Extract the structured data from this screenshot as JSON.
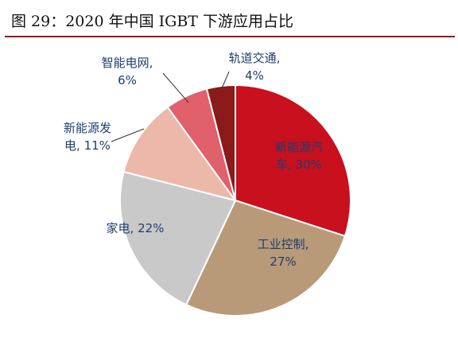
{
  "title": "图 29：2020 年中国 IGBT 下游应用占比",
  "chart_data": {
    "type": "pie",
    "title": "",
    "slices": [
      {
        "label": "新能源汽车",
        "value": 30,
        "color": "#c8101e",
        "text_lines": [
          "新能源汽",
          "车, 30%"
        ]
      },
      {
        "label": "工业控制",
        "value": 27,
        "color": "#b89a78",
        "text_lines": [
          "工业控制,",
          "27%"
        ]
      },
      {
        "label": "家电",
        "value": 22,
        "color": "#c9c9c9",
        "text_lines": [
          "家电, 22%"
        ]
      },
      {
        "label": "新能源发电",
        "value": 11,
        "color": "#ecb8aa",
        "text_lines": [
          "新能源发",
          "电, 11%"
        ]
      },
      {
        "label": "智能电网",
        "value": 6,
        "color": "#e0606c",
        "text_lines": [
          "智能电网,",
          "6%"
        ]
      },
      {
        "label": "轨道交通",
        "value": 4,
        "color": "#8b1a1a",
        "text_lines": [
          "轨道交通,",
          "4%"
        ]
      }
    ]
  }
}
